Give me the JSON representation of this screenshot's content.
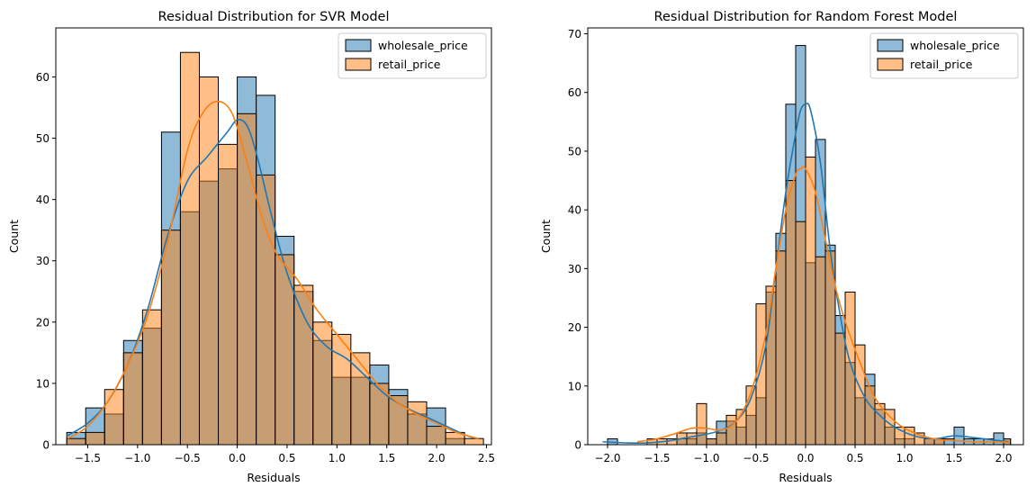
{
  "chart_data": [
    {
      "type": "histogram",
      "title": "Residual Distribution for SVR Model",
      "xlabel": "Residuals",
      "ylabel": "Count",
      "xlim": [
        -1.82,
        2.55
      ],
      "ylim": [
        0,
        68
      ],
      "xticks": [
        -1.5,
        -1.0,
        -0.5,
        0.0,
        0.5,
        1.0,
        1.5,
        2.0,
        2.5
      ],
      "xtick_labels": [
        "−1.5",
        "−1.0",
        "−0.5",
        "0.0",
        "0.5",
        "1.0",
        "1.5",
        "2.0",
        "2.5"
      ],
      "yticks": [
        0,
        10,
        20,
        30,
        40,
        50,
        60
      ],
      "ytick_labels": [
        "0",
        "10",
        "20",
        "30",
        "40",
        "50",
        "60"
      ],
      "legend_position": "top-right",
      "series": [
        {
          "name": "wholesale_price",
          "color": "#1f77b4",
          "bin_edges": [
            -1.71,
            -1.52,
            -1.33,
            -1.14,
            -0.95,
            -0.76,
            -0.57,
            -0.38,
            -0.19,
            0.0,
            0.19,
            0.38,
            0.57,
            0.76,
            0.95,
            1.14,
            1.33,
            1.52,
            1.71,
            1.9,
            2.09,
            2.28
          ],
          "counts": [
            2,
            6,
            5,
            17,
            19,
            51,
            38,
            43,
            45,
            60,
            57,
            34,
            25,
            17,
            11,
            11,
            13,
            9,
            5,
            6,
            1
          ],
          "kde": {
            "x": [
              -1.7,
              -1.5,
              -1.3,
              -1.1,
              -0.9,
              -0.7,
              -0.5,
              -0.3,
              -0.1,
              0.0,
              0.1,
              0.2,
              0.35,
              0.5,
              0.7,
              0.9,
              1.1,
              1.3,
              1.5,
              1.7,
              1.9,
              2.1,
              2.3,
              2.42
            ],
            "y": [
              1.5,
              3.5,
              7,
              13,
              22,
              34,
              43,
              47,
              51,
              53,
              52,
              47,
              37,
              28,
              20,
              16,
              14,
              11,
              8,
              6,
              4.5,
              3,
              1.5,
              1
            ]
          }
        },
        {
          "name": "retail_price",
          "color": "#ff7f0e",
          "bin_edges": [
            -1.71,
            -1.52,
            -1.33,
            -1.14,
            -0.95,
            -0.76,
            -0.57,
            -0.38,
            -0.19,
            0.0,
            0.19,
            0.38,
            0.57,
            0.76,
            0.95,
            1.14,
            1.33,
            1.52,
            1.71,
            1.9,
            2.09,
            2.28,
            2.47
          ],
          "counts": [
            1,
            2,
            9,
            15,
            22,
            35,
            64,
            60,
            49,
            54,
            44,
            31,
            26,
            20,
            18,
            15,
            10,
            8,
            7,
            3,
            2,
            1
          ],
          "kde": {
            "x": [
              -1.7,
              -1.5,
              -1.3,
              -1.1,
              -0.9,
              -0.7,
              -0.5,
              -0.35,
              -0.2,
              -0.05,
              0.1,
              0.25,
              0.4,
              0.6,
              0.8,
              1.0,
              1.2,
              1.4,
              1.6,
              1.8,
              2.0,
              2.2,
              2.42
            ],
            "y": [
              1,
              3,
              7,
              13,
              21,
              33,
              48,
              54,
              56,
              54,
              46,
              37,
              31,
              27,
              22,
              18,
              14,
              10,
              7,
              5,
              3.5,
              2,
              1
            ]
          }
        }
      ]
    },
    {
      "type": "histogram",
      "title": "Residual Distribution for Random Forest Model",
      "xlabel": "Residuals",
      "ylabel": "Count",
      "xlim": [
        -2.2,
        2.2
      ],
      "ylim": [
        0,
        71
      ],
      "xticks": [
        -2.0,
        -1.5,
        -1.0,
        -0.5,
        0.0,
        0.5,
        1.0,
        1.5,
        2.0
      ],
      "xtick_labels": [
        "−2.0",
        "−1.5",
        "−1.0",
        "−0.5",
        "0.0",
        "0.5",
        "1.0",
        "1.5",
        "2.0"
      ],
      "yticks": [
        0,
        10,
        20,
        30,
        40,
        50,
        60,
        70
      ],
      "ytick_labels": [
        "0",
        "10",
        "20",
        "30",
        "40",
        "50",
        "60",
        "70"
      ],
      "legend_position": "top-right",
      "series": [
        {
          "name": "wholesale_price",
          "color": "#1f77b4",
          "bin_edges": [
            -2.0,
            -1.9,
            -1.8,
            -1.7,
            -1.6,
            -1.5,
            -1.4,
            -1.3,
            -1.2,
            -1.1,
            -1.0,
            -0.9,
            -0.8,
            -0.7,
            -0.6,
            -0.5,
            -0.4,
            -0.3,
            -0.2,
            -0.1,
            0.0,
            0.1,
            0.2,
            0.3,
            0.4,
            0.5,
            0.6,
            0.7,
            0.8,
            0.9,
            1.0,
            1.1,
            1.2,
            1.3,
            1.4,
            1.5,
            1.6,
            1.7,
            1.8,
            1.9,
            2.0,
            2.07
          ],
          "counts": [
            1,
            0,
            0,
            0,
            0,
            0,
            0,
            1,
            1,
            2,
            1,
            4,
            4,
            3,
            5,
            8,
            26,
            36,
            58,
            68,
            31,
            52,
            34,
            22,
            14,
            8,
            12,
            6,
            3,
            1,
            1,
            0,
            1,
            1,
            1,
            3,
            1,
            1,
            1,
            2,
            1
          ],
          "kde": {
            "x": [
              -2.05,
              -1.8,
              -1.6,
              -1.4,
              -1.2,
              -1.0,
              -0.85,
              -0.7,
              -0.55,
              -0.4,
              -0.3,
              -0.2,
              -0.1,
              -0.05,
              0.0,
              0.05,
              0.15,
              0.25,
              0.35,
              0.45,
              0.6,
              0.75,
              0.9,
              1.1,
              1.3,
              1.5,
              1.7,
              1.9,
              2.05
            ],
            "y": [
              0.5,
              0.3,
              0.3,
              0.6,
              1.2,
              1.8,
              2.5,
              4,
              8,
              17,
              30,
              43,
              53,
              57,
              58,
              57,
              48,
              33,
              22,
              14,
              8,
              5,
              3,
              1.5,
              1,
              1.5,
              1.2,
              0.8,
              0.5
            ]
          }
        },
        {
          "name": "retail_price",
          "color": "#ff7f0e",
          "bin_edges": [
            -1.6,
            -1.5,
            -1.4,
            -1.3,
            -1.2,
            -1.1,
            -1.0,
            -0.9,
            -0.8,
            -0.7,
            -0.6,
            -0.5,
            -0.4,
            -0.3,
            -0.2,
            -0.1,
            0.0,
            0.1,
            0.2,
            0.3,
            0.4,
            0.5,
            0.6,
            0.7,
            0.8,
            0.9,
            1.0,
            1.1,
            1.2,
            1.3,
            1.4,
            1.5,
            1.6,
            1.7,
            1.8,
            1.9,
            2.0,
            2.07
          ],
          "counts": [
            1,
            1,
            1,
            2,
            2,
            7,
            1,
            2,
            5,
            6,
            10,
            24,
            27,
            33,
            45,
            38,
            49,
            32,
            33,
            19,
            26,
            17,
            10,
            7,
            6,
            3,
            3,
            2,
            1,
            1,
            0,
            0,
            0,
            0,
            0,
            0,
            1
          ],
          "kde": {
            "x": [
              -1.7,
              -1.5,
              -1.3,
              -1.15,
              -1.0,
              -0.85,
              -0.7,
              -0.55,
              -0.4,
              -0.3,
              -0.2,
              -0.1,
              -0.05,
              0.0,
              0.1,
              0.2,
              0.3,
              0.4,
              0.55,
              0.7,
              0.9,
              1.1,
              1.3,
              1.5,
              1.7,
              1.9,
              2.05
            ],
            "y": [
              0.5,
              1,
              2,
              2.8,
              2.8,
              2.5,
              4,
              9,
              19,
              30,
              40,
              46,
              47,
              47,
              43,
              35,
              27,
              21,
              14,
              8,
              4,
              2,
              1,
              0.7,
              0.5,
              0.5,
              0.4
            ]
          }
        }
      ]
    }
  ]
}
